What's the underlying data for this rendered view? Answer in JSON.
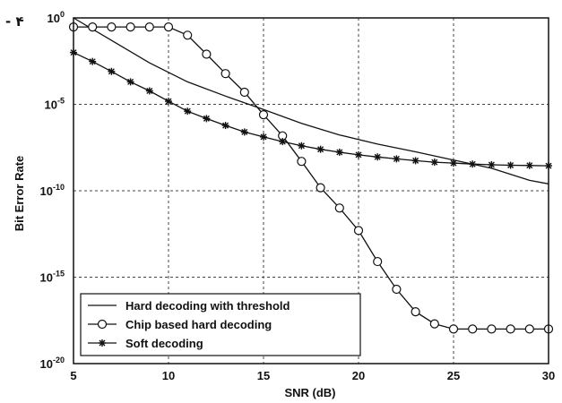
{
  "corner_mark": "- ۴",
  "chart_data": {
    "type": "line",
    "title": "",
    "xlabel": "SNR (dB)",
    "ylabel": "Bit Error Rate",
    "xlim": [
      5,
      30
    ],
    "ylim": [
      1e-20,
      1
    ],
    "yscale": "log",
    "grid": true,
    "grid_style": "dashed",
    "x_ticks": [
      5,
      10,
      15,
      20,
      25,
      30
    ],
    "y_ticks": [
      {
        "base": "10",
        "exp": "0",
        "value": 1
      },
      {
        "base": "10",
        "exp": "-5",
        "value": 1e-05
      },
      {
        "base": "10",
        "exp": "-10",
        "value": 1e-10
      },
      {
        "base": "10",
        "exp": "-15",
        "value": 1e-15
      },
      {
        "base": "10",
        "exp": "-20",
        "value": 1e-20
      }
    ],
    "legend_position": "bottom-left",
    "series": [
      {
        "name": "Hard decoding with threshold",
        "marker": "none",
        "color": "#111111",
        "x": [
          5,
          7,
          9,
          11,
          13,
          15,
          17,
          19,
          21,
          23,
          25,
          27,
          28,
          29,
          30
        ],
        "y": [
          1.0,
          0.05,
          0.0025,
          0.0002,
          3e-05,
          5e-06,
          8e-07,
          1.7e-07,
          5e-08,
          1.8e-08,
          6e-09,
          2e-09,
          9e-10,
          4e-10,
          2.5e-10
        ]
      },
      {
        "name": "Chip based hard decoding",
        "marker": "circle",
        "color": "#111111",
        "x": [
          5,
          6,
          7,
          8,
          9,
          10,
          11,
          12,
          13,
          14,
          15,
          16,
          17,
          18,
          19,
          20,
          21,
          22,
          23,
          24,
          25,
          26,
          27,
          28,
          29,
          30
        ],
        "y": [
          0.3,
          0.3,
          0.3,
          0.3,
          0.3,
          0.3,
          0.1,
          0.008,
          0.0006,
          5e-05,
          2.5e-06,
          1.5e-07,
          5e-09,
          1.5e-10,
          1e-11,
          5e-13,
          8e-15,
          2e-16,
          1e-17,
          2e-18,
          1e-18,
          1e-18,
          1e-18,
          1e-18,
          1e-18,
          1e-18
        ]
      },
      {
        "name": "Soft decoding",
        "marker": "star",
        "color": "#111111",
        "x": [
          5,
          6,
          7,
          8,
          9,
          10,
          11,
          12,
          13,
          14,
          15,
          16,
          17,
          18,
          19,
          20,
          21,
          22,
          23,
          24,
          25,
          26,
          27,
          28,
          29,
          30
        ],
        "y": [
          0.01,
          0.003,
          0.0008,
          0.0002,
          6e-05,
          1.5e-05,
          4e-06,
          1.5e-06,
          6e-07,
          2.5e-07,
          1.3e-07,
          7e-08,
          4e-08,
          2.5e-08,
          1.7e-08,
          1.2e-08,
          9e-09,
          7e-09,
          5.5e-09,
          4.5e-09,
          4e-09,
          3.5e-09,
          3.2e-09,
          3e-09,
          2.9e-09,
          2.8e-09
        ]
      }
    ]
  }
}
